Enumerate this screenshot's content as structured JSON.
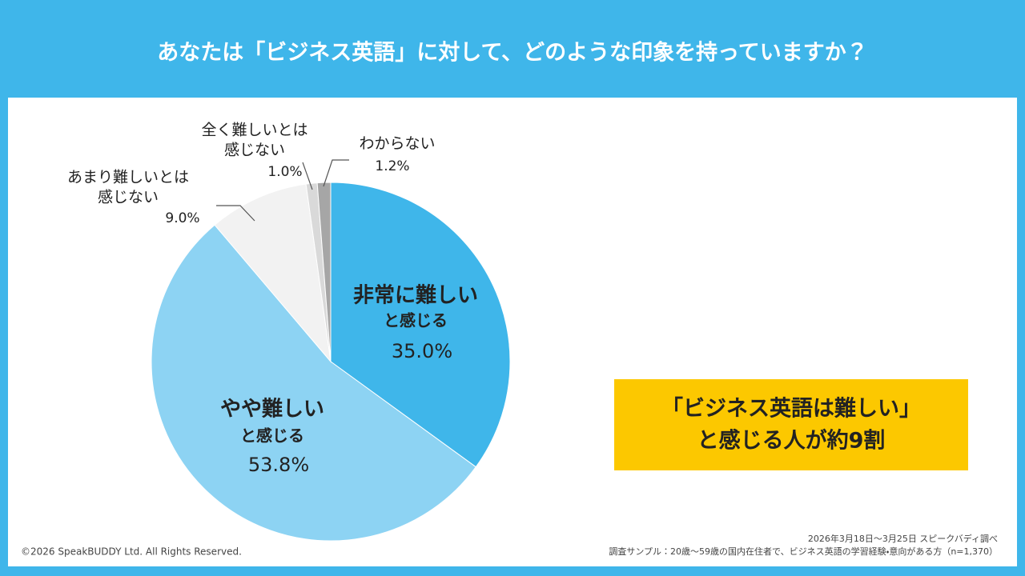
{
  "chart_data": {
    "type": "pie",
    "title": "あなたは「ビジネス英語」に対して、どのような印象を持っていますか？",
    "categories": [
      [
        "非常に難しい",
        "と感じる"
      ],
      [
        "やや難しい",
        "と感じる"
      ],
      [
        "あまり難しいとは",
        "感じない"
      ],
      [
        "全く難しいとは",
        "感じない"
      ],
      [
        "わからない"
      ]
    ],
    "values": [
      35.0,
      53.8,
      9.0,
      1.0,
      1.2
    ],
    "value_labels": [
      "35.0%",
      "53.8%",
      "9.0%",
      "1.0%",
      "1.2%"
    ],
    "colors": [
      "#3fb6ea",
      "#8dd3f3",
      "#f2f2f2",
      "#d9d9d9",
      "#a6a6a6"
    ],
    "callout": [
      "「ビジネス英語は難しい」",
      "と感じる人が約9割"
    ],
    "copyright": "©2026 SpeakBUDDY Ltd. All Rights Reserved.",
    "source": [
      "2026年3月18日～3月25日 スピークバディ調べ",
      "調査サンプル：20歳～59歳の国内在住者で、ビジネス英語の学習経験・意向がある方（n=1,370）"
    ]
  }
}
